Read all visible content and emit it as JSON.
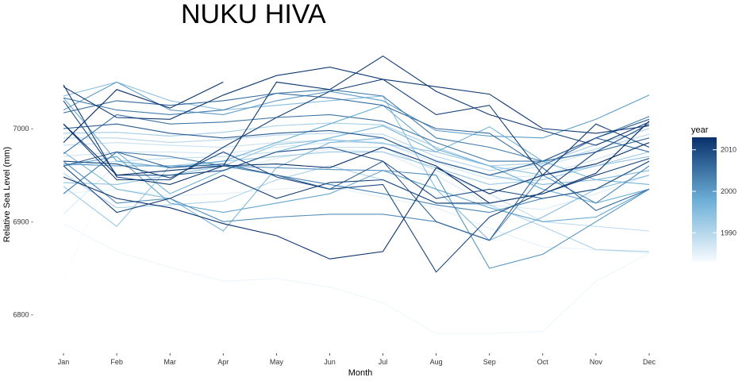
{
  "chart_data": {
    "type": "line",
    "title": "NUKU HIVA",
    "xlabel": "Month",
    "ylabel": "Relative Sea Level (mm)",
    "categories": [
      "Jan",
      "Feb",
      "Mar",
      "Apr",
      "May",
      "Jun",
      "Jul",
      "Aug",
      "Sep",
      "Oct",
      "Nov",
      "Dec"
    ],
    "ylim": [
      6763,
      7087
    ],
    "yticks": [
      6800,
      6900,
      7000
    ],
    "ytick_labels": [
      "6800 -",
      "6900 -",
      "7000 -"
    ],
    "grid": false,
    "legend": {
      "title": "year",
      "placement": "right",
      "min_year": 1983,
      "max_year": 2013,
      "ticks": [
        1990,
        2000,
        2010
      ],
      "colors": [
        "#f7fbff",
        "#6baed6",
        "#08306b"
      ]
    },
    "series": [
      {
        "year": 1983,
        "values": [
          6837,
          6972,
          6956,
          6945,
          6952,
          6960,
          6950,
          6943,
          6930,
          6935,
          6945,
          6960
        ]
      },
      {
        "year": 1984,
        "values": [
          6898,
          6868,
          6851,
          6836,
          6839,
          6830,
          6813,
          6780,
          6780,
          6782,
          6836,
          6866
        ]
      },
      {
        "year": 1985,
        "values": [
          6930,
          6935,
          6928,
          6930,
          6935,
          6938,
          6926,
          6915,
          6893,
          6873,
          6870,
          6866
        ]
      },
      {
        "year": 1986,
        "values": [
          6908,
          6962,
          6960,
          6954,
          6968,
          6978,
          6975,
          6950,
          6918,
          6913,
          6930,
          6950
        ]
      },
      {
        "year": 1987,
        "values": [
          6970,
          6975,
          6975,
          6973,
          6980,
          6985,
          6985,
          6963,
          6946,
          6950,
          6967,
          6985
        ]
      },
      {
        "year": 1988,
        "values": [
          6982,
          6985,
          6982,
          6980,
          6985,
          6988,
          6985,
          6966,
          6950,
          6960,
          6975,
          6990
        ]
      },
      {
        "year": 1989,
        "values": [
          6960,
          6965,
          6968,
          6970,
          6975,
          6980,
          6980,
          6955,
          6930,
          6900,
          6895,
          6890
        ]
      },
      {
        "year": 1990,
        "values": [
          6990,
          6990,
          6985,
          6988,
          6993,
          6995,
          6994,
          6970,
          6955,
          6962,
          6978,
          6994
        ]
      },
      {
        "year": 1991,
        "values": [
          6952,
          6915,
          6918,
          6922,
          6945,
          6960,
          6945,
          6920,
          6918,
          6895,
          6870,
          6868
        ]
      },
      {
        "year": 1992,
        "values": [
          6995,
          6996,
          6992,
          6996,
          7003,
          7006,
          7004,
          6980,
          6960,
          6963,
          6983,
          7000
        ]
      },
      {
        "year": 1993,
        "values": [
          6938,
          6895,
          6960,
          6965,
          6970,
          6975,
          6975,
          6958,
          6940,
          6945,
          6960,
          6975
        ]
      },
      {
        "year": 1994,
        "values": [
          6942,
          6940,
          6950,
          6960,
          6983,
          6988,
          6984,
          6975,
          6960,
          6950,
          6960,
          6970
        ]
      },
      {
        "year": 1995,
        "values": [
          7035,
          7050,
          7030,
          7020,
          7025,
          7030,
          7035,
          6935,
          6880,
          6905,
          6935,
          6950
        ]
      },
      {
        "year": 1996,
        "values": [
          6975,
          6935,
          6925,
          6890,
          6958,
          6985,
          6990,
          6965,
          6950,
          6940,
          6945,
          6955
        ]
      },
      {
        "year": 1997,
        "values": [
          6930,
          6975,
          6930,
          6955,
          6975,
          6990,
          7003,
          6975,
          7002,
          6965,
          6945,
          6940
        ]
      },
      {
        "year": 1998,
        "values": [
          7033,
          6965,
          6958,
          6965,
          6985,
          7005,
          7025,
          6978,
          6960,
          6935,
          6920,
          6935
        ]
      },
      {
        "year": 1999,
        "values": [
          6960,
          6970,
          6920,
          6910,
          6920,
          6930,
          6955,
          6935,
          6915,
          6900,
          6905,
          6935
        ]
      },
      {
        "year": 2000,
        "values": [
          7020,
          7050,
          7020,
          7015,
          7030,
          7040,
          7030,
          6998,
          6992,
          6990,
          7010,
          7036
        ]
      },
      {
        "year": 2001,
        "values": [
          6962,
          6960,
          6960,
          6960,
          6958,
          6956,
          6955,
          6950,
          6850,
          6865,
          6900,
          6935
        ]
      },
      {
        "year": 2002,
        "values": [
          6965,
          6920,
          6925,
          6900,
          6905,
          6908,
          6908,
          6900,
          6880,
          6950,
          6920,
          6960
        ]
      },
      {
        "year": 2003,
        "values": [
          6930,
          6975,
          6970,
          6960,
          6950,
          6940,
          6930,
          6918,
          6910,
          6925,
          6935,
          6965
        ]
      },
      {
        "year": 2004,
        "values": [
          7033,
          7020,
          7015,
          7020,
          7038,
          7042,
          7035,
          6990,
          6980,
          6965,
          6990,
          7013
        ]
      },
      {
        "year": 2005,
        "values": [
          6973,
          7015,
          7005,
          7007,
          7012,
          7015,
          7008,
          6985,
          6965,
          6965,
          6975,
          6990
        ]
      },
      {
        "year": 2006,
        "values": [
          7017,
          7030,
          7025,
          7030,
          7038,
          7033,
          7025,
          7000,
          6995,
          6958,
          6912,
          6935
        ]
      },
      {
        "year": 2007,
        "values": [
          6960,
          6975,
          6958,
          6962,
          6950,
          6935,
          6965,
          6900,
          6880,
          6960,
          6990,
          6975
        ]
      },
      {
        "year": 2008,
        "values": [
          7000,
          7005,
          6995,
          6990,
          6995,
          6998,
          6990,
          6965,
          6950,
          6965,
          6990,
          7010
        ]
      },
      {
        "year": 2009,
        "values": [
          7030,
          6950,
          6950,
          6955,
          6975,
          6980,
          6965,
          6925,
          6935,
          6925,
          6935,
          6965
        ]
      },
      {
        "year": 2010,
        "values": [
          6965,
          6962,
          6947,
          6975,
          6948,
          6935,
          6940,
          6846,
          6905,
          6932,
          6975,
          7005
        ]
      },
      {
        "year": 2011,
        "values": [
          7005,
          6945,
          6945,
          6980,
          7012,
          7040,
          7053,
          7015,
          7025,
          6950,
          7005,
          6980
        ]
      },
      {
        "year": 2012,
        "values": [
          7045,
          7012,
          7010,
          7036,
          7057,
          7066,
          7053,
          7045,
          7037,
          7000,
          6995,
          7003
        ]
      },
      {
        "year": 2013,
        "values": [
          6948,
          6925,
          6915,
          6898,
          6885,
          6860,
          6868,
          6958,
          6930,
          6950,
          6962,
          6985
        ]
      },
      {
        "year": 2013,
        "values": [
          7005,
          6950,
          6955,
          6960,
          6962,
          6958,
          6980,
          6960,
          6920,
          6930,
          6952,
          7008
        ]
      },
      {
        "year": 2013,
        "values": [
          6985,
          7042,
          7022,
          7050,
          null,
          null,
          null,
          null,
          null,
          null,
          null,
          null
        ]
      },
      {
        "year": 2012,
        "values": [
          7047,
          6948,
          6940,
          6960,
          7050,
          7042,
          7078,
          7040,
          7015,
          6998,
          6982,
          7007
        ]
      },
      {
        "year": 2011,
        "values": [
          6960,
          6910,
          6925,
          6950,
          6925,
          6942,
          6945,
          6920,
          6920,
          6930,
          6950,
          6968
        ]
      }
    ]
  }
}
